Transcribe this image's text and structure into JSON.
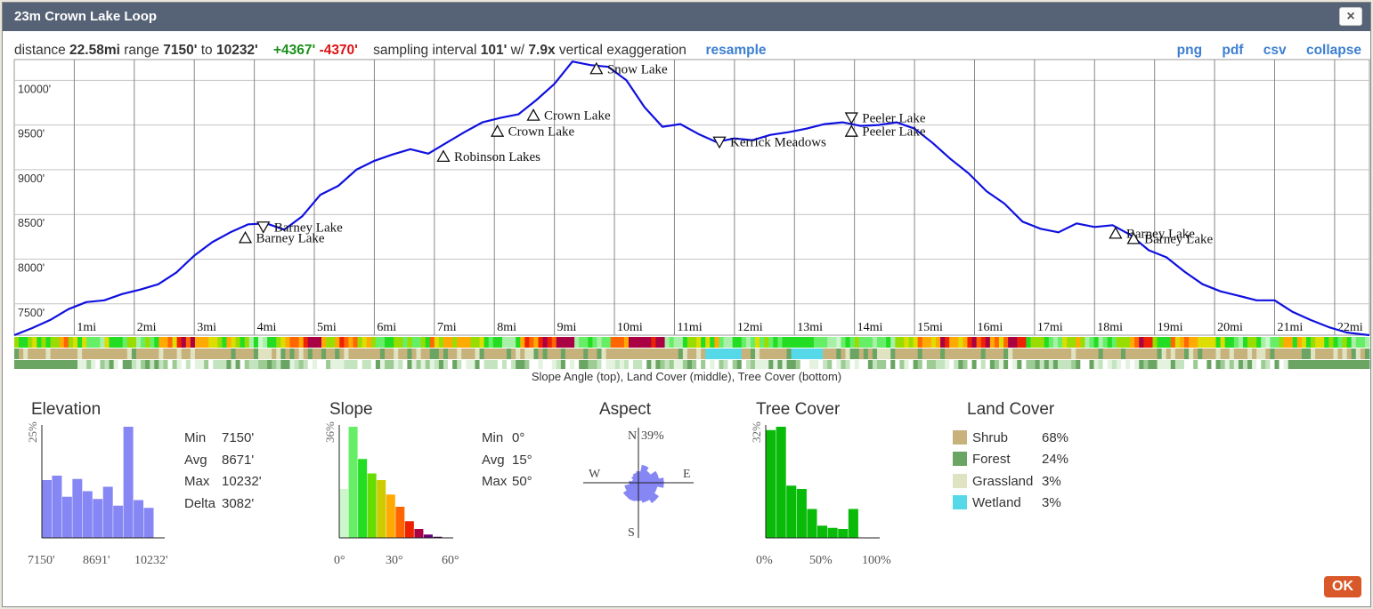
{
  "dialog": {
    "title": "23m Crown Lake Loop",
    "close": "×",
    "ok": "OK"
  },
  "info": {
    "distance_label": "distance",
    "distance": "22.58mi",
    "range_label": "range",
    "range_min": "7150'",
    "to": "to",
    "range_max": "10232'",
    "gain": "+4367'",
    "loss": "-4370'",
    "sampling_label": "sampling interval",
    "interval": "101'",
    "w": "w/",
    "exaggeration": "7.9x",
    "exaggeration_label": "vertical exaggeration",
    "resample": "resample"
  },
  "export_links": [
    "png",
    "pdf",
    "csv",
    "collapse"
  ],
  "chart_data": {
    "type": "line",
    "title": "Elevation profile",
    "x_unit": "mi",
    "x_range": [
      0,
      22.58
    ],
    "y_range": [
      7150,
      10232
    ],
    "y_ticks": [
      "10000'",
      "9500'",
      "9000'",
      "8500'",
      "8000'",
      "7500'"
    ],
    "y_tick_values": [
      10000,
      9500,
      9000,
      8500,
      8000,
      7500
    ],
    "x_ticks": [
      "1mi",
      "2mi",
      "3mi",
      "4mi",
      "5mi",
      "6mi",
      "7mi",
      "8mi",
      "9mi",
      "10mi",
      "11mi",
      "12mi",
      "13mi",
      "14mi",
      "15mi",
      "16mi",
      "17mi",
      "18mi",
      "19mi",
      "20mi",
      "21mi",
      "22mi"
    ],
    "x": [
      0,
      0.3,
      0.6,
      0.9,
      1.2,
      1.5,
      1.8,
      2.1,
      2.4,
      2.7,
      3.0,
      3.3,
      3.6,
      3.9,
      4.2,
      4.5,
      4.8,
      5.1,
      5.4,
      5.7,
      6.0,
      6.3,
      6.6,
      6.9,
      7.2,
      7.5,
      7.8,
      8.1,
      8.4,
      8.7,
      9.0,
      9.3,
      9.6,
      9.9,
      10.2,
      10.5,
      10.8,
      11.1,
      11.4,
      11.7,
      12.0,
      12.3,
      12.6,
      12.9,
      13.2,
      13.5,
      13.8,
      14.1,
      14.4,
      14.7,
      15.0,
      15.3,
      15.6,
      15.9,
      16.2,
      16.5,
      16.8,
      17.1,
      17.4,
      17.7,
      18.0,
      18.3,
      18.6,
      18.9,
      19.2,
      19.5,
      19.8,
      20.1,
      20.4,
      20.7,
      21.0,
      21.3,
      21.6,
      21.9,
      22.2,
      22.58
    ],
    "elevation": [
      7150,
      7230,
      7320,
      7440,
      7520,
      7540,
      7610,
      7660,
      7720,
      7850,
      8040,
      8190,
      8300,
      8390,
      8400,
      8330,
      8480,
      8720,
      8820,
      9000,
      9100,
      9170,
      9230,
      9180,
      9300,
      9420,
      9530,
      9580,
      9620,
      9780,
      9960,
      10210,
      10170,
      10150,
      10000,
      9700,
      9480,
      9510,
      9400,
      9310,
      9350,
      9330,
      9390,
      9420,
      9460,
      9510,
      9530,
      9490,
      9500,
      9530,
      9460,
      9300,
      9120,
      8960,
      8760,
      8620,
      8420,
      8340,
      8300,
      8400,
      8360,
      8380,
      8270,
      8100,
      8020,
      7860,
      7720,
      7640,
      7590,
      7540,
      7540,
      7410,
      7320,
      7240,
      7180,
      7150
    ],
    "waypoints": [
      {
        "name": "Barney Lake",
        "mi": 4.15,
        "elev": 8360,
        "dir": "down"
      },
      {
        "name": "Barney Lake",
        "mi": 3.85,
        "elev": 8240,
        "dir": "up"
      },
      {
        "name": "Robinson Lakes",
        "mi": 7.15,
        "elev": 9150,
        "dir": "up"
      },
      {
        "name": "Crown Lake",
        "mi": 8.05,
        "elev": 9430,
        "dir": "up"
      },
      {
        "name": "Crown Lake",
        "mi": 8.65,
        "elev": 9610,
        "dir": "up"
      },
      {
        "name": "Snow Lake",
        "mi": 9.7,
        "elev": 10130,
        "dir": "up"
      },
      {
        "name": "Kerrick Meadows",
        "mi": 11.75,
        "elev": 9310,
        "dir": "down"
      },
      {
        "name": "Peeler Lake",
        "mi": 13.95,
        "elev": 9580,
        "dir": "down"
      },
      {
        "name": "Peeler Lake",
        "mi": 13.95,
        "elev": 9430,
        "dir": "up"
      },
      {
        "name": "Barney Lake",
        "mi": 18.35,
        "elev": 8290,
        "dir": "up"
      },
      {
        "name": "Barney Lake",
        "mi": 18.65,
        "elev": 8230,
        "dir": "up"
      }
    ],
    "strip_caption": "Slope Angle (top), Land Cover (middle), Tree Cover (bottom)"
  },
  "elevation_stats": {
    "title": "Elevation",
    "ylabel": "25%",
    "bars": [
      0.52,
      0.56,
      0.37,
      0.53,
      0.42,
      0.35,
      0.46,
      0.29,
      1.0,
      0.34,
      0.27
    ],
    "color": "#8686f5",
    "xlabels": [
      "7150'",
      "8691'",
      "10232'"
    ],
    "rows": [
      {
        "k": "Min",
        "v": "7150'"
      },
      {
        "k": "Avg",
        "v": "8671'"
      },
      {
        "k": "Max",
        "v": "10232'"
      },
      {
        "k": "Delta",
        "v": "3082'"
      }
    ]
  },
  "slope_stats": {
    "title": "Slope",
    "ylabel": "36%",
    "bars": [
      0.44,
      1.0,
      0.71,
      0.58,
      0.52,
      0.39,
      0.28,
      0.15,
      0.08,
      0.03,
      0.01
    ],
    "colors": [
      "#ccf7cc",
      "#66ee66",
      "#22dd22",
      "#66dd00",
      "#cccc00",
      "#ffaa00",
      "#ff6600",
      "#ee2200",
      "#aa0044",
      "#660077",
      "#330033"
    ],
    "xlabels": [
      "0°",
      "30°",
      "60°"
    ],
    "rows": [
      {
        "k": "Min",
        "v": "0°"
      },
      {
        "k": "Avg",
        "v": "15°"
      },
      {
        "k": "Max",
        "v": "50°"
      }
    ]
  },
  "aspect_stats": {
    "title": "Aspect",
    "n": "N",
    "e": "E",
    "s": "S",
    "w": "W",
    "max_label": "39%",
    "sectors": [
      0.22,
      0.35,
      0.28,
      0.4,
      0.49,
      0.37,
      0.47,
      0.39,
      0.35,
      0.36,
      0.35,
      0.27,
      0.18,
      0.12,
      0.16,
      0.19
    ],
    "color": "#8686f5"
  },
  "tree_stats": {
    "title": "Tree Cover",
    "ylabel": "32%",
    "bars": [
      0.97,
      1.0,
      0.47,
      0.44,
      0.26,
      0.11,
      0.09,
      0.08,
      0.26,
      0.0
    ],
    "color": "#08bb08",
    "xlabels": [
      "0%",
      "50%",
      "100%"
    ]
  },
  "land_cover": {
    "title": "Land Cover",
    "items": [
      {
        "name": "Shrub",
        "pct": "68%",
        "color": "#c7b27c"
      },
      {
        "name": "Forest",
        "pct": "24%",
        "color": "#6aa563"
      },
      {
        "name": "Grassland",
        "pct": "3%",
        "color": "#dfe3c1"
      },
      {
        "name": "Wetland",
        "pct": "3%",
        "color": "#55d8e8"
      }
    ]
  }
}
